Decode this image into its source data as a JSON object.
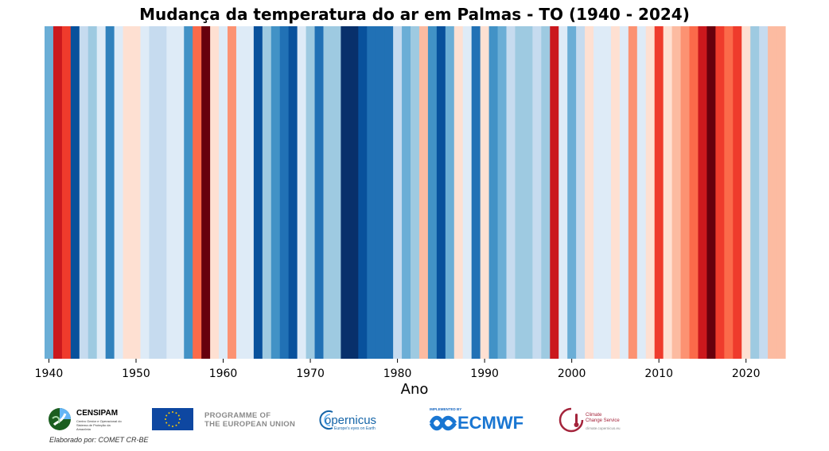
{
  "chart_data": {
    "type": "heatmap",
    "title": "Mudança da temperatura do ar em Palmas - TO (1940 - 2024)",
    "xlabel": "Ano",
    "ylabel": "",
    "xlim": [
      1940,
      2024
    ],
    "x_ticks": [
      1940,
      1950,
      1960,
      1970,
      1980,
      1990,
      2000,
      2010,
      2020
    ],
    "grid": false,
    "years": [
      1940,
      1941,
      1942,
      1943,
      1944,
      1945,
      1946,
      1947,
      1948,
      1949,
      1950,
      1951,
      1952,
      1953,
      1954,
      1955,
      1956,
      1957,
      1958,
      1959,
      1960,
      1961,
      1962,
      1963,
      1964,
      1965,
      1966,
      1967,
      1968,
      1969,
      1970,
      1971,
      1972,
      1973,
      1974,
      1975,
      1976,
      1977,
      1978,
      1979,
      1980,
      1981,
      1982,
      1983,
      1984,
      1985,
      1986,
      1987,
      1988,
      1989,
      1990,
      1991,
      1992,
      1993,
      1994,
      1995,
      1996,
      1997,
      1998,
      1999,
      2000,
      2001,
      2002,
      2003,
      2004,
      2005,
      2006,
      2007,
      2008,
      2009,
      2010,
      2011,
      2012,
      2013,
      2014,
      2015,
      2016,
      2017,
      2018,
      2019,
      2020,
      2021,
      2022,
      2023,
      2024
    ],
    "colors": [
      "#6baed6",
      "#cb181d",
      "#ef3b2c",
      "#08519c",
      "#c6dbef",
      "#9ecae1",
      "#deebf7",
      "#3182bd",
      "#deebf7",
      "#fee0d2",
      "#fee0d2",
      "#deebf7",
      "#c6dbef",
      "#c6dbef",
      "#deebf7",
      "#deebf7",
      "#4292c6",
      "#fb6a4a",
      "#67000d",
      "#fee0d2",
      "#deebf7",
      "#fc9272",
      "#deebf7",
      "#deebf7",
      "#08519c",
      "#9ecae1",
      "#4292c6",
      "#2171b5",
      "#08519c",
      "#deebf7",
      "#9ecae1",
      "#2171b5",
      "#9ecae1",
      "#9ecae1",
      "#08306b",
      "#08306b",
      "#08519c",
      "#2171b5",
      "#2171b5",
      "#2171b5",
      "#c6dbef",
      "#6baed6",
      "#9ecae1",
      "#fcbba1",
      "#4292c6",
      "#08519c",
      "#6baed6",
      "#fee0d2",
      "#deebf7",
      "#2171b5",
      "#fee0d2",
      "#4292c6",
      "#6baed6",
      "#c6dbef",
      "#9ecae1",
      "#9ecae1",
      "#c6dbef",
      "#9ecae1",
      "#cb181d",
      "#deebf7",
      "#6baed6",
      "#c6dbef",
      "#fee0d2",
      "#deebf7",
      "#deebf7",
      "#fee0d2",
      "#deebf7",
      "#fc9272",
      "#deebf7",
      "#fee0d2",
      "#ef3b2c",
      "#fee0d2",
      "#fcbba1",
      "#fc9272",
      "#fb6a4a",
      "#cb181d",
      "#67000d",
      "#ef3b2c",
      "#fb6a4a",
      "#ef3b2c",
      "#fee0d2",
      "#9ecae1",
      "#c6dbef",
      "#fcbba1",
      "#fcbba1"
    ]
  },
  "logos": {
    "censipam": {
      "name": "CENSIPAM",
      "subtitle": "Centro Gestor e Operacional do Sistema de Proteção da Amazônia"
    },
    "credit": "Elaborado por: COMET CR-BE",
    "eu": {
      "line1": "PROGRAMME OF",
      "line2": "THE EUROPEAN UNION"
    },
    "copernicus": {
      "name": "opernicus",
      "subtitle": "Europe's eyes on Earth"
    },
    "ecmwf": {
      "implemented_by": "IMPLEMENTED BY",
      "name": "ECMWF"
    },
    "c3s": {
      "line1": "Climate",
      "line2": "Change Service",
      "url": "climate.copernicus.eu"
    }
  },
  "colors": {
    "censipam_green": "#2e7d32",
    "eu_blue": "#0e47a1",
    "eu_star": "#ffcc00",
    "ecmwf_blue": "#1976d2",
    "c3s_red": "#a4243b"
  }
}
